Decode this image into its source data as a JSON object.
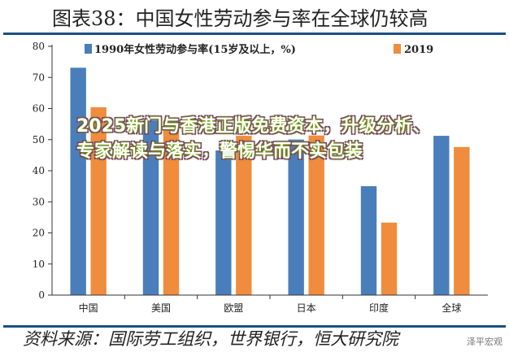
{
  "header": {
    "title": "图表38：中国女性劳动参与率在全球仍较高"
  },
  "footer": {
    "source": "资料来源：国际劳工组织，世界银行，恒大研究院"
  },
  "watermark": {
    "text": "泽平宏观"
  },
  "overlay": {
    "text": "2025新门与香港正版免费资本，升级分析、专家解读与落实，警惕华而不实包装"
  },
  "colors": {
    "series_1990": "#4a7ebb",
    "series_2019": "#f08c3e",
    "axis": "#333333",
    "rule": "#1c4f84"
  },
  "chart_data": {
    "type": "bar",
    "title": "图表38：中国女性劳动参与率在全球仍较高",
    "xlabel": "",
    "ylabel": "",
    "categories": [
      "中国",
      "美国",
      "欧盟",
      "日本",
      "印度",
      "全球"
    ],
    "series": [
      {
        "name": "1990年女性劳动参与率(15岁及以上，%)",
        "values": [
          73.2,
          56.3,
          46.6,
          50.1,
          35.1,
          51.3
        ],
        "color": "#4a7ebb"
      },
      {
        "name": "2019",
        "values": [
          60.5,
          56.2,
          51.3,
          51.4,
          23.4,
          47.7
        ],
        "color": "#f08c3e"
      }
    ],
    "ylim": [
      0,
      80
    ],
    "yticks": [
      "0",
      "10",
      "20",
      "30",
      "40",
      "50",
      "60",
      "70",
      "80"
    ],
    "grid": false,
    "legend": "top"
  }
}
